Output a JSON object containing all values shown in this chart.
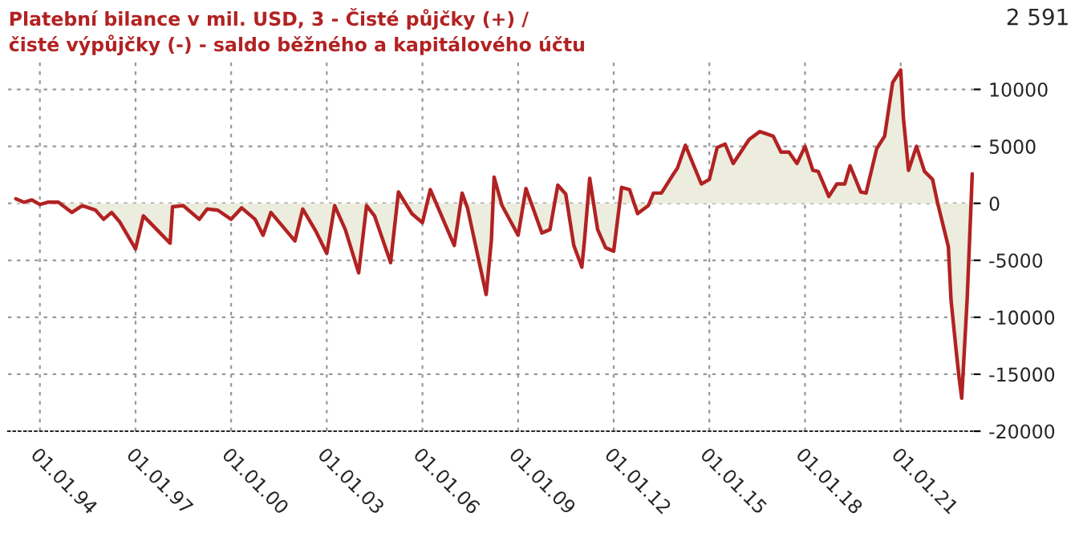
{
  "chart_data": {
    "type": "area",
    "title": "Platební bilance v mil. USD, 3 - Čisté půjčky (+) /\nčisté výpůjčky (-) - saldo běžného a kapitálového účtu",
    "series": [
      {
        "color": "#b22222",
        "x": [
          "1993-04",
          "1993-07",
          "1993-10",
          "1994-01",
          "1994-04",
          "1994-08",
          "1995-01",
          "1995-05",
          "1995-10",
          "1996-01",
          "1996-04",
          "1996-07",
          "1997-01",
          "1997-04",
          "1997-09",
          "1998-02",
          "1998-03",
          "1998-07",
          "1999-01",
          "1999-04",
          "1999-08",
          "2000-01",
          "2000-05",
          "2000-10",
          "2001-01",
          "2001-04",
          "2002-01",
          "2002-04",
          "2002-09",
          "2003-01",
          "2003-04",
          "2003-08",
          "2004-01",
          "2004-04",
          "2004-07",
          "2005-01",
          "2005-04",
          "2005-09",
          "2006-01",
          "2006-04",
          "2007-01",
          "2007-04",
          "2007-06",
          "2008-01",
          "2008-03",
          "2008-04",
          "2008-07",
          "2009-01",
          "2009-04",
          "2009-10",
          "2010-01",
          "2010-04",
          "2010-07",
          "2010-10",
          "2011-01",
          "2011-02",
          "2011-04",
          "2011-07",
          "2011-10",
          "2012-01",
          "2012-04",
          "2012-07",
          "2012-10",
          "2013-02",
          "2013-04",
          "2013-07",
          "2013-11",
          "2014-01",
          "2014-04",
          "2014-10",
          "2015-01",
          "2015-04",
          "2015-07",
          "2015-10",
          "2016-04",
          "2016-08",
          "2017-01",
          "2017-04",
          "2017-07",
          "2017-10",
          "2018-01",
          "2018-04",
          "2018-06",
          "2018-10",
          "2019-01",
          "2019-04",
          "2019-06",
          "2019-10",
          "2019-12",
          "2020-04",
          "2020-07",
          "2020-10",
          "2021-01",
          "2021-02",
          "2021-04",
          "2021-07",
          "2021-10",
          "2022-01",
          "2022-03",
          "2022-07",
          "2022-08",
          "2022-10",
          "2022-11",
          "2022-12",
          "2023-02",
          "2023-03",
          "2023-04"
        ],
        "values": [
          400,
          100,
          300,
          -100,
          100,
          100,
          -800,
          -200,
          -600,
          -1400,
          -800,
          -1600,
          -4000,
          -1100,
          -2300,
          -3500,
          -300,
          -200,
          -1400,
          -500,
          -600,
          -1400,
          -400,
          -1400,
          -2800,
          -800,
          -3300,
          -500,
          -2500,
          -4400,
          -200,
          -2300,
          -6100,
          -200,
          -1100,
          -5200,
          1000,
          -900,
          -1700,
          1200,
          -3700,
          900,
          -400,
          -8000,
          -3200,
          2300,
          -200,
          -2800,
          1300,
          -2600,
          -2300,
          1600,
          800,
          -3700,
          -5600,
          -3200,
          2200,
          -2300,
          -3900,
          -4200,
          1400,
          1200,
          -900,
          -200,
          900,
          900,
          2400,
          3100,
          5100,
          1700,
          2100,
          4900,
          5200,
          3500,
          5600,
          6300,
          5900,
          4500,
          4500,
          3500,
          5000,
          2900,
          2800,
          600,
          1700,
          1700,
          3300,
          1000,
          900,
          4800,
          5900,
          10600,
          11700,
          7500,
          2900,
          5000,
          2800,
          2100,
          0,
          -3800,
          -8500,
          -13100,
          -15300,
          -17100,
          -8500,
          -3300,
          2591
        ]
      }
    ],
    "annotations": [
      "2 591"
    ],
    "xlim": [
      "1993-01-01",
      "2023-04-20"
    ],
    "ylim": [
      -20000,
      12500
    ],
    "xticks": [
      {
        "value": "1994-01-01",
        "label": "01.01.94"
      },
      {
        "value": "1997-01-01",
        "label": "01.01.97"
      },
      {
        "value": "2000-01-01",
        "label": "01.01.00"
      },
      {
        "value": "2003-01-01",
        "label": "01.01.03"
      },
      {
        "value": "2006-01-01",
        "label": "01.01.06"
      },
      {
        "value": "2009-01-01",
        "label": "01.01.09"
      },
      {
        "value": "2012-01-01",
        "label": "01.01.12"
      },
      {
        "value": "2015-01-01",
        "label": "01.01.15"
      },
      {
        "value": "2018-01-01",
        "label": "01.01.18"
      },
      {
        "value": "2021-01-01",
        "label": "01.01.21"
      }
    ],
    "yticks": [
      -20000,
      -15000,
      -10000,
      -5000,
      0,
      5000,
      10000
    ],
    "grid": true,
    "legend": false
  }
}
